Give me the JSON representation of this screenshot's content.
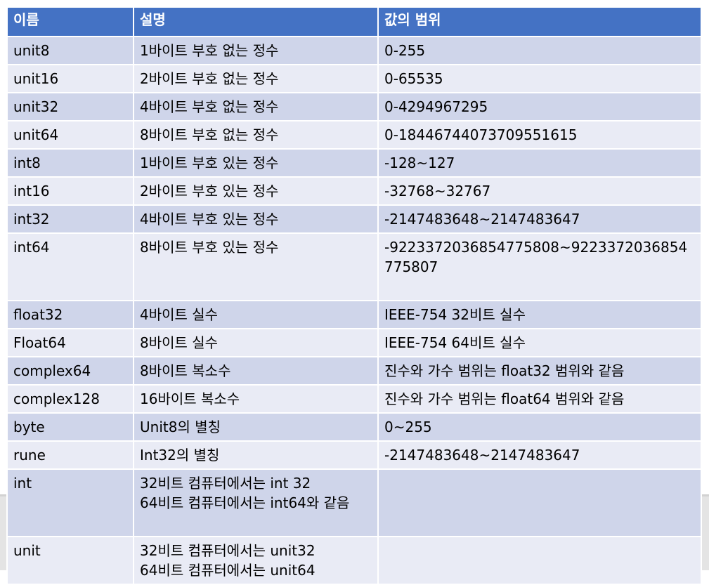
{
  "headers": [
    "이름",
    "설명",
    "값의 범위"
  ],
  "rows": [
    {
      "name": "unit8",
      "desc": [
        "1바이트 부호 없는 정수"
      ],
      "range": "0-255"
    },
    {
      "name": "unit16",
      "desc": [
        "2바이트 부호 없는 정수"
      ],
      "range": "0-65535"
    },
    {
      "name": "unit32",
      "desc": [
        "4바이트 부호 없는 정수"
      ],
      "range": "0-4294967295"
    },
    {
      "name": "unit64",
      "desc": [
        "8바이트 부호 없는 정수"
      ],
      "range": "0-18446744073709551615"
    },
    {
      "name": "int8",
      "desc": [
        "1바이트 부호 있는 정수"
      ],
      "range": "-128~127"
    },
    {
      "name": "int16",
      "desc": [
        "2바이트 부호 있는 정수"
      ],
      "range": "-32768~32767"
    },
    {
      "name": "int32",
      "desc": [
        "4바이트 부호 있는 정수"
      ],
      "range": "-2147483648~2147483647"
    },
    {
      "name": "int64",
      "desc": [
        "8바이트 부호 있는 정수"
      ],
      "range": "-9223372036854775808~9223372036854775807"
    },
    {
      "name": "float32",
      "desc": [
        "4바이트 실수"
      ],
      "range": "IEEE-754 32비트 실수"
    },
    {
      "name": "Float64",
      "desc": [
        "8바이트 실수"
      ],
      "range": "IEEE-754 64비트 실수"
    },
    {
      "name": "complex64",
      "desc": [
        "8바이트 복소수"
      ],
      "range": "진수와 가수 범위는 float32 범위와 같음"
    },
    {
      "name": "complex128",
      "desc": [
        "16바이트 복소수"
      ],
      "range": "진수와 가수 범위는 float64 범위와 같음"
    },
    {
      "name": "byte",
      "desc": [
        "Unit8의 별칭"
      ],
      "range": "0~255"
    },
    {
      "name": "rune",
      "desc": [
        "Int32의 별칭"
      ],
      "range": "-2147483648~2147483647"
    },
    {
      "name": "int",
      "desc": [
        "32비트 컴퓨터에서는 int 32",
        "64비트 컴퓨터에서는 int64와 같음"
      ],
      "range": ""
    },
    {
      "name": "unit",
      "desc": [
        "32비트 컴퓨터에서는 unit32",
        "64비트 컴퓨터에서는 unit64"
      ],
      "range": ""
    }
  ]
}
